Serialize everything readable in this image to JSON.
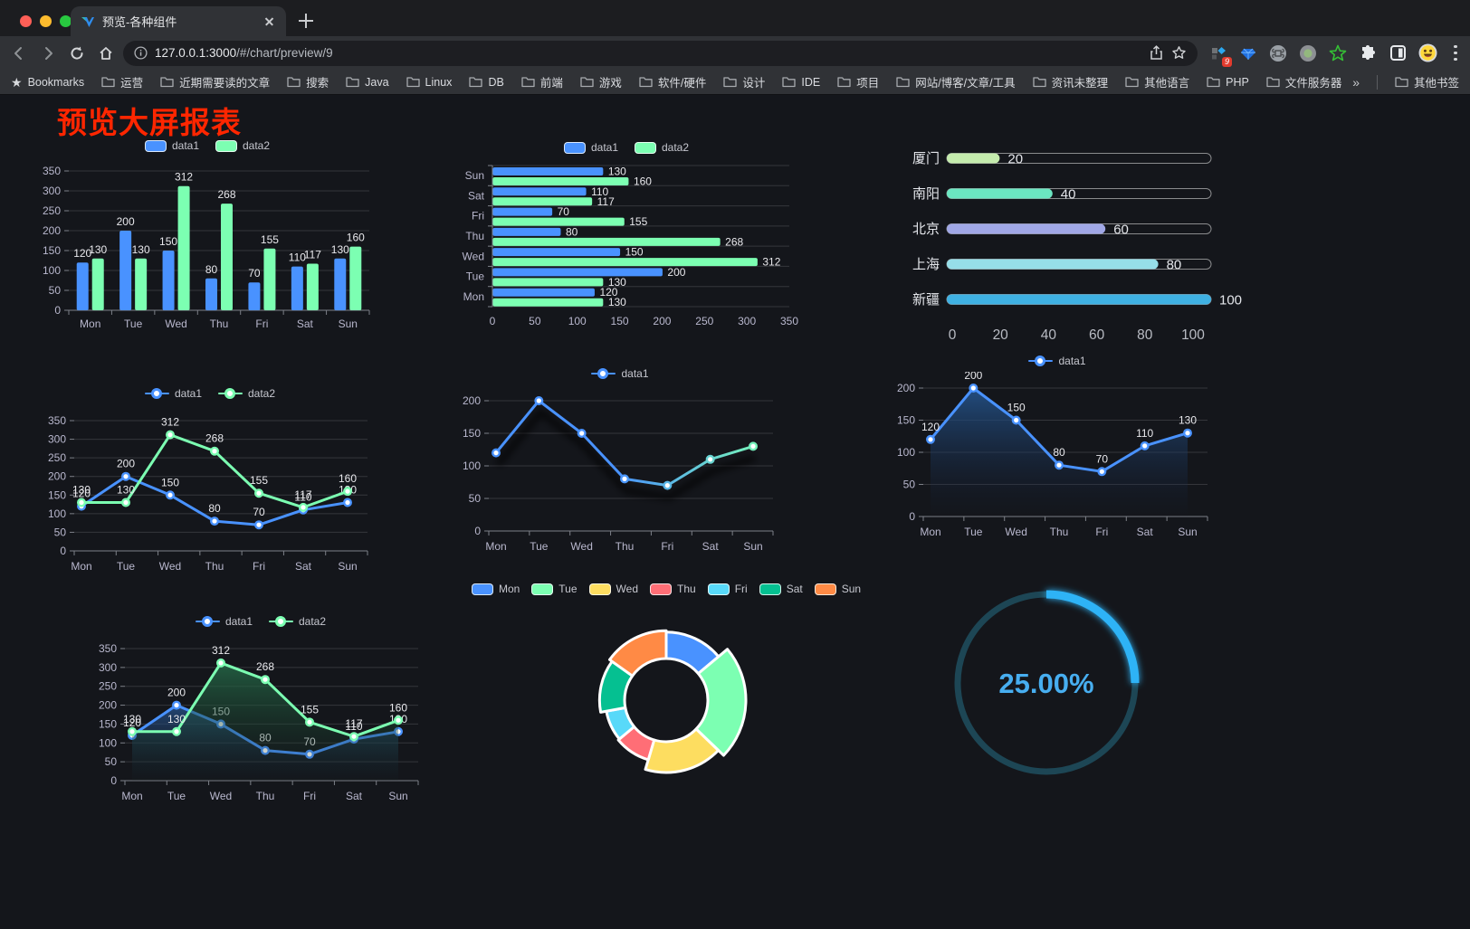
{
  "browser": {
    "tab_title": "预览-各种组件",
    "url_host": "127.0.0.1:3000",
    "url_path": "/#/chart/preview/9",
    "ext_badge": "9"
  },
  "bookmarks": {
    "label": "Bookmarks",
    "items": [
      "运营",
      "近期需要读的文章",
      "搜索",
      "Java",
      "Linux",
      "DB",
      "前端",
      "游戏",
      "软件/硬件",
      "设计",
      "IDE",
      "项目",
      "网站/博客/文章/工具",
      "资讯未整理",
      "其他语言",
      "PHP",
      "文件服务器"
    ],
    "overflow": "»",
    "other": "其他书签"
  },
  "page": {
    "title": "预览大屏报表",
    "title_color": "#ff2600",
    "background": "#14161b"
  },
  "chart_data": [
    {
      "id": "bar-grouped",
      "type": "bar",
      "legend": true,
      "categories": [
        "Mon",
        "Tue",
        "Wed",
        "Thu",
        "Fri",
        "Sat",
        "Sun"
      ],
      "series": [
        {
          "name": "data1",
          "color": "#4992ff",
          "values": [
            120,
            200,
            150,
            80,
            70,
            110,
            130
          ]
        },
        {
          "name": "data2",
          "color": "#7cffb2",
          "values": [
            130,
            130,
            312,
            268,
            155,
            117,
            160
          ]
        }
      ],
      "ylim": [
        0,
        350
      ],
      "ystep": 50
    },
    {
      "id": "hbar",
      "type": "hbar",
      "legend": true,
      "categories": [
        "Mon",
        "Tue",
        "Wed",
        "Thu",
        "Fri",
        "Sat",
        "Sun"
      ],
      "series": [
        {
          "name": "data1",
          "color": "#4992ff",
          "values": [
            120,
            200,
            150,
            80,
            70,
            110,
            130
          ]
        },
        {
          "name": "data2",
          "color": "#7cffb2",
          "values": [
            130,
            130,
            312,
            268,
            155,
            117,
            160
          ]
        }
      ],
      "xlim": [
        0,
        350
      ],
      "xstep": 50
    },
    {
      "id": "capsule",
      "type": "capsule",
      "max": 100,
      "rows": [
        {
          "label": "厦门",
          "value": 20,
          "color": "#c4ebad"
        },
        {
          "label": "南阳",
          "value": 40,
          "color": "#6be6c1"
        },
        {
          "label": "北京",
          "value": 60,
          "color": "#a0a7e6"
        },
        {
          "label": "上海",
          "value": 80,
          "color": "#96dee8"
        },
        {
          "label": "新疆",
          "value": 100,
          "color": "#3fb1e3"
        }
      ],
      "xticks": [
        0,
        20,
        40,
        60,
        80,
        100
      ]
    },
    {
      "id": "line-two",
      "type": "line",
      "legend": true,
      "labels": true,
      "categories": [
        "Mon",
        "Tue",
        "Wed",
        "Thu",
        "Fri",
        "Sat",
        "Sun"
      ],
      "series": [
        {
          "name": "data1",
          "color": "#4992ff",
          "values": [
            120,
            200,
            150,
            80,
            70,
            110,
            130
          ]
        },
        {
          "name": "data2",
          "color": "#7cffb2",
          "values": [
            130,
            130,
            312,
            268,
            155,
            117,
            160
          ]
        }
      ],
      "ylim": [
        0,
        350
      ],
      "ystep": 50
    },
    {
      "id": "line-gradient",
      "type": "line",
      "legend": true,
      "labels": false,
      "categories": [
        "Mon",
        "Tue",
        "Wed",
        "Thu",
        "Fri",
        "Sat",
        "Sun"
      ],
      "series": [
        {
          "name": "data1",
          "color": "#4992ff",
          "gradient": [
            "#4992ff",
            "#7cffb2"
          ],
          "shadow": true,
          "values": [
            120,
            200,
            150,
            80,
            70,
            110,
            130
          ]
        }
      ],
      "ylim": [
        0,
        200
      ],
      "ystep": 50
    },
    {
      "id": "area-single",
      "type": "line",
      "legend": true,
      "labels": true,
      "categories": [
        "Mon",
        "Tue",
        "Wed",
        "Thu",
        "Fri",
        "Sat",
        "Sun"
      ],
      "series": [
        {
          "name": "data1",
          "color": "#4992ff",
          "area": [
            "rgba(36,84,140,0.9)",
            "rgba(20,30,52,0.03)"
          ],
          "values": [
            120,
            200,
            150,
            80,
            70,
            110,
            130
          ]
        }
      ],
      "ylim": [
        0,
        200
      ],
      "ystep": 50
    },
    {
      "id": "area-two",
      "type": "line",
      "legend": true,
      "labels": true,
      "categories": [
        "Mon",
        "Tue",
        "Wed",
        "Thu",
        "Fri",
        "Sat",
        "Sun"
      ],
      "series": [
        {
          "name": "data1",
          "color": "#4992ff",
          "area": [
            "rgba(41,88,148,0.75)",
            "rgba(20,30,52,0.04)"
          ],
          "values": [
            120,
            200,
            150,
            80,
            70,
            110,
            130
          ]
        },
        {
          "name": "data2",
          "color": "#7cffb2",
          "area": [
            "rgba(38,110,74,0.8)",
            "rgba(20,42,32,0.04)"
          ],
          "values": [
            130,
            130,
            312,
            268,
            155,
            117,
            160
          ]
        }
      ],
      "ylim": [
        0,
        350
      ],
      "ystep": 50
    },
    {
      "id": "pie",
      "type": "pie",
      "legend": true,
      "items": [
        {
          "label": "Mon",
          "value": 120,
          "color": "#4992ff"
        },
        {
          "label": "Tue",
          "value": 200,
          "color": "#7cffb2"
        },
        {
          "label": "Wed",
          "value": 150,
          "color": "#fddd60"
        },
        {
          "label": "Thu",
          "value": 80,
          "color": "#ff6e76"
        },
        {
          "label": "Fri",
          "value": 70,
          "color": "#58d9f9"
        },
        {
          "label": "Sat",
          "value": 110,
          "color": "#05c091"
        },
        {
          "label": "Sun",
          "value": 130,
          "color": "#ff8a45"
        }
      ]
    },
    {
      "id": "gauge",
      "type": "gauge",
      "value": 25,
      "display": "25.00%",
      "color": "#2eb3f6",
      "track": "#1d4655",
      "text_color": "#47aef0"
    }
  ]
}
